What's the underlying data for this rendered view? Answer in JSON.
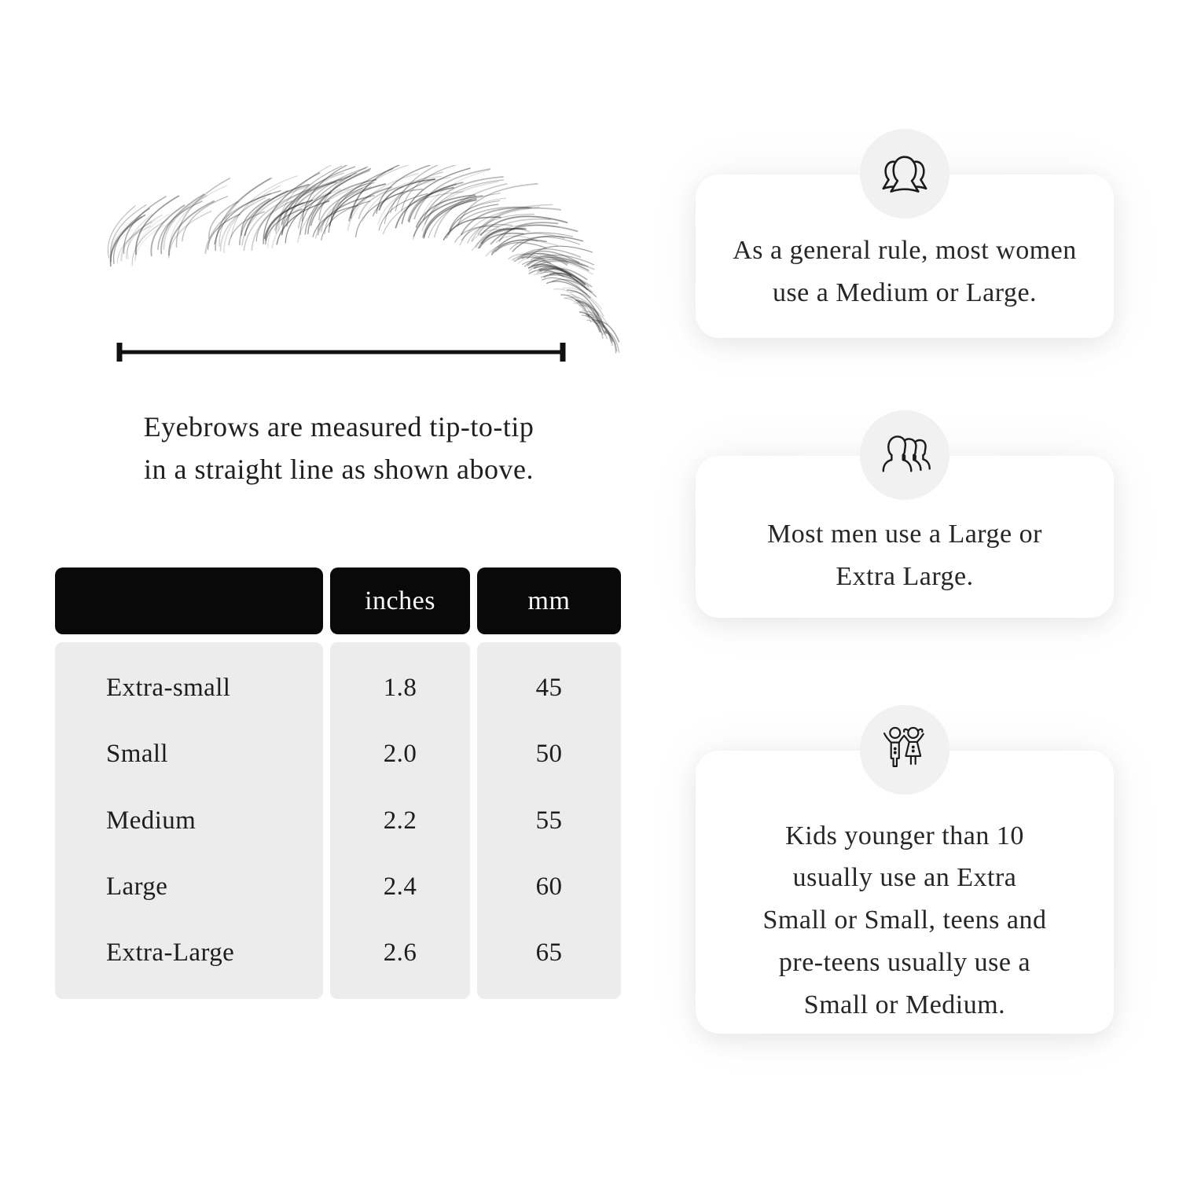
{
  "measure_section": {
    "caption_lines": [
      "Eyebrows are measured tip-to-tip",
      "in a straight line as shown above."
    ]
  },
  "size_table": {
    "columns": [
      "",
      "inches",
      "mm"
    ],
    "rows": [
      {
        "label": "Extra-small",
        "inches": "1.8",
        "mm": "45"
      },
      {
        "label": "Small",
        "inches": "2.0",
        "mm": "50"
      },
      {
        "label": "Medium",
        "inches": "2.2",
        "mm": "55"
      },
      {
        "label": "Large",
        "inches": "2.4",
        "mm": "60"
      },
      {
        "label": "Extra-Large",
        "inches": "2.6",
        "mm": "65"
      }
    ]
  },
  "cards": [
    {
      "icon": "women-group-icon",
      "lines": [
        "As a general rule, most women",
        "use a Medium or Large."
      ]
    },
    {
      "icon": "men-group-icon",
      "lines": [
        "Most men use a Large or",
        "Extra Large."
      ]
    },
    {
      "icon": "kids-icon",
      "lines": [
        "Kids younger than 10",
        "usually use an Extra",
        "Small or Small, teens and",
        "pre-teens usually use a",
        "Small or Medium."
      ]
    }
  ],
  "colors": {
    "table_header_bg": "#090909",
    "table_header_text": "#fafafa",
    "table_body_bg": "#ececec",
    "icon_circle_bg": "#f1f1f1",
    "card_bg": "#ffffff",
    "text": "#212121"
  }
}
